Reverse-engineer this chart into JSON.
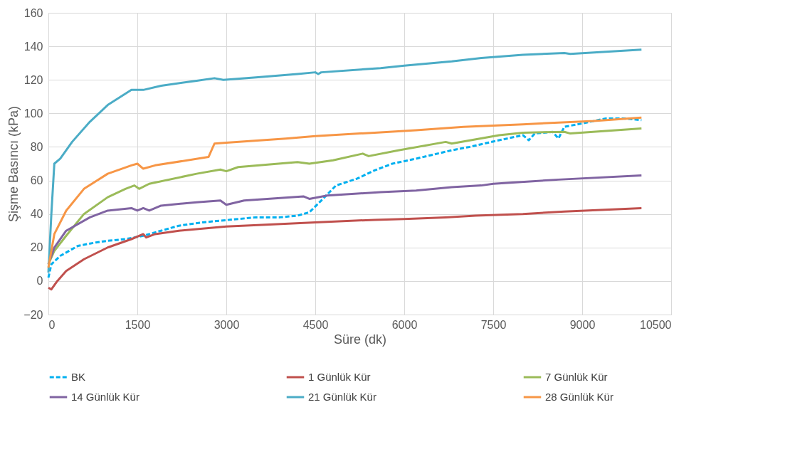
{
  "chart_data": {
    "type": "line",
    "xlabel": "Süre (dk)",
    "ylabel": "Şişme Basıncı (kPa)",
    "xlim": [
      0,
      10500
    ],
    "xticks": [
      0,
      1500,
      3000,
      4500,
      6000,
      7500,
      9000,
      10500
    ],
    "ylim": [
      -20,
      160
    ],
    "yticks": [
      -20,
      0,
      20,
      40,
      60,
      80,
      100,
      120,
      140,
      160
    ],
    "grid": true,
    "legend": "bottom",
    "marker": "none",
    "series": [
      {
        "name": "BK",
        "color": "#00b0f0",
        "line_style": "dashed",
        "x": [
          0,
          50,
          200,
          500,
          800,
          1000,
          1300,
          1600,
          1900,
          2200,
          2600,
          2900,
          3200,
          3500,
          3900,
          4200,
          4400,
          4600,
          4850,
          5200,
          5500,
          5800,
          6200,
          6800,
          7100,
          7600,
          8000,
          8100,
          8200,
          8500,
          8600,
          8700,
          9000,
          9400,
          9700,
          10000
        ],
        "values": [
          2,
          10,
          15,
          21,
          23,
          24,
          25,
          27,
          30,
          33,
          35,
          36,
          37,
          38,
          38,
          39,
          41,
          48,
          57,
          61,
          66,
          70,
          73,
          78,
          80,
          84,
          87,
          84,
          88,
          89,
          85,
          92,
          94,
          97,
          97,
          96
        ]
      },
      {
        "name": "1 Günlük Kür",
        "color": "#c0504d",
        "line_style": "solid",
        "x": [
          0,
          50,
          150,
          300,
          600,
          1000,
          1400,
          1600,
          1650,
          1800,
          2200,
          3000,
          3600,
          4500,
          5500,
          6000,
          6700,
          7200,
          8000,
          8700,
          10000
        ],
        "values": [
          -4,
          -5,
          0,
          6,
          13,
          20,
          25,
          28,
          26,
          28,
          30,
          32.5,
          33.5,
          35,
          36.5,
          37,
          38,
          39,
          40,
          41.5,
          43.5
        ]
      },
      {
        "name": "7 Günlük Kür",
        "color": "#9bbb59",
        "line_style": "solid",
        "x": [
          0,
          100,
          300,
          600,
          1000,
          1300,
          1450,
          1530,
          1700,
          2500,
          2900,
          3000,
          3200,
          4200,
          4400,
          4800,
          5300,
          5400,
          5900,
          6700,
          6800,
          7600,
          8000,
          8700,
          8800,
          10000
        ],
        "values": [
          10,
          18,
          27,
          40,
          50,
          55,
          57,
          55,
          58,
          64,
          66.5,
          65.5,
          68,
          71,
          70,
          72,
          76,
          74.5,
          78,
          83,
          82,
          87,
          88.5,
          89,
          88,
          91
        ]
      },
      {
        "name": "14 Günlük Kür",
        "color": "#8064a2",
        "line_style": "solid",
        "x": [
          0,
          100,
          300,
          700,
          1000,
          1400,
          1500,
          1600,
          1700,
          1900,
          2500,
          2900,
          3000,
          3300,
          4300,
          4400,
          4700,
          5600,
          6200,
          6800,
          7300,
          7500,
          8600,
          10000
        ],
        "values": [
          10,
          20,
          30,
          38,
          42,
          43.5,
          42,
          43.5,
          42,
          45,
          47,
          48,
          45.5,
          48,
          50.5,
          49,
          51,
          53,
          54,
          56,
          57,
          58,
          60.5,
          63
        ]
      },
      {
        "name": "21 Günlük Kür",
        "color": "#4bacc6",
        "line_style": "solid",
        "x": [
          0,
          50,
          100,
          200,
          400,
          700,
          1000,
          1400,
          1600,
          1900,
          2500,
          2800,
          2950,
          3500,
          4200,
          4500,
          4550,
          4600,
          5600,
          6000,
          6800,
          7300,
          8000,
          8700,
          8800,
          10000
        ],
        "values": [
          5,
          40,
          70,
          73,
          83,
          95,
          105,
          114,
          114,
          116.5,
          119.5,
          121,
          120,
          121.5,
          123.5,
          124.5,
          123.5,
          124.5,
          127,
          128.5,
          131,
          133,
          135,
          136,
          135.5,
          138
        ]
      },
      {
        "name": "28 Günlük Kür",
        "color": "#f79646",
        "line_style": "solid",
        "x": [
          0,
          100,
          300,
          600,
          1000,
          1400,
          1500,
          1600,
          1800,
          2700,
          2800,
          3000,
          4000,
          4500,
          5500,
          6200,
          7000,
          8000,
          8600,
          9200,
          10000
        ],
        "values": [
          8,
          28,
          42,
          55,
          64,
          69,
          70,
          67,
          69,
          74,
          82,
          82.5,
          85,
          86.5,
          88.5,
          90,
          92,
          93.5,
          94.5,
          95.5,
          97.5
        ]
      }
    ]
  }
}
